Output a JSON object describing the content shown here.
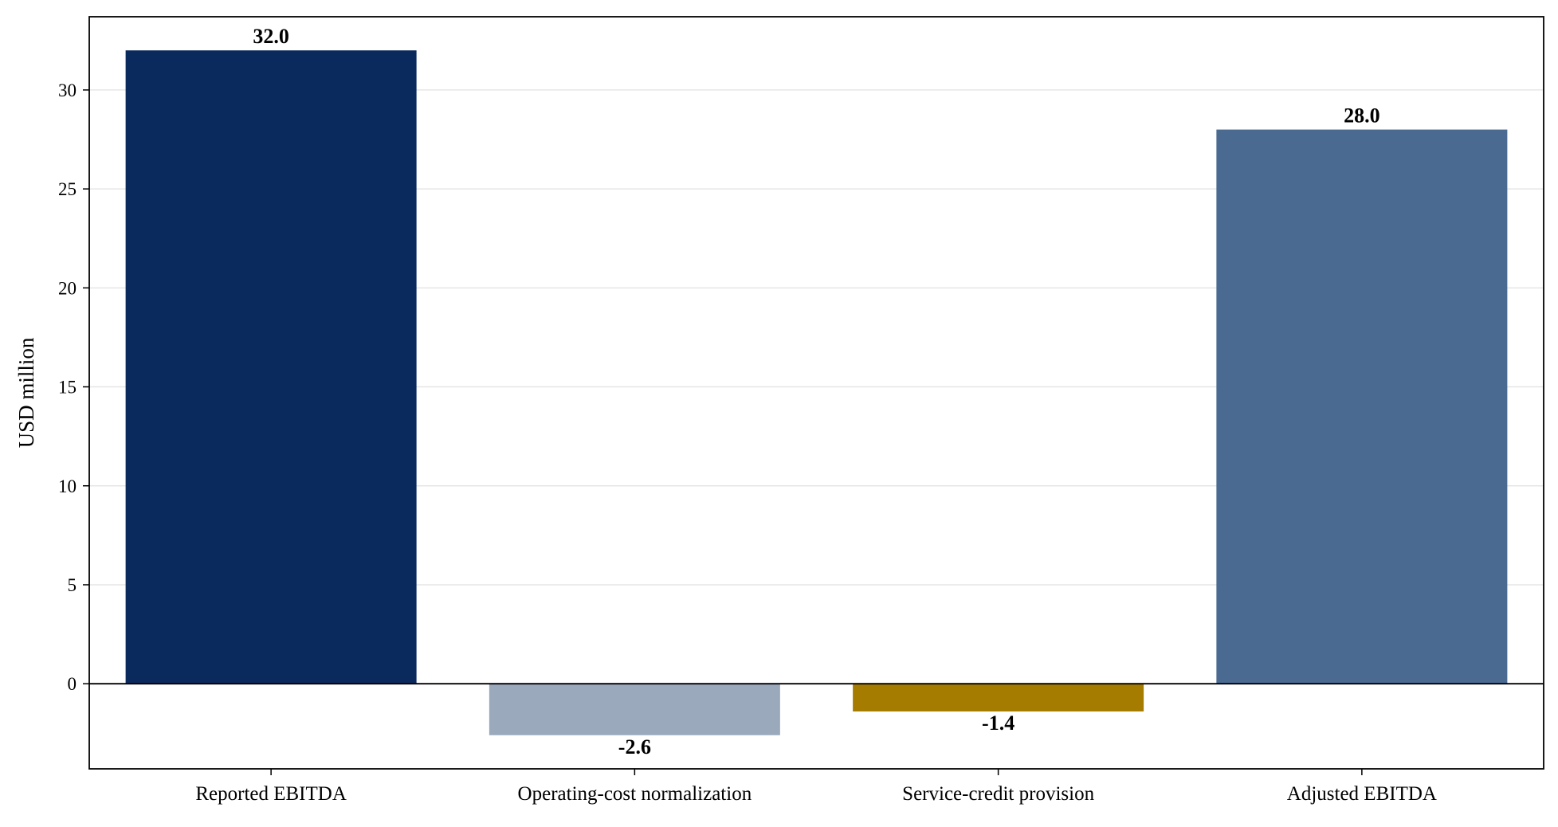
{
  "chart_data": {
    "type": "bar",
    "title": "",
    "xlabel": "",
    "ylabel": "USD million",
    "categories": [
      "Reported EBITDA",
      "Operating-cost normalization",
      "Service-credit provision",
      "Adjusted EBITDA"
    ],
    "values": [
      32.0,
      -2.6,
      -1.4,
      28.0
    ],
    "value_labels": [
      "32.0",
      "-2.6",
      "-1.4",
      "28.0"
    ],
    "bar_colors": [
      "#0a2a5e",
      "#9aa9bc",
      "#a57c00",
      "#4a6a92"
    ],
    "ylim": [
      -4.3,
      33.7
    ],
    "yticks": [
      0,
      5,
      10,
      15,
      20,
      25,
      30
    ],
    "ytick_labels": [
      "0",
      "5",
      "10",
      "15",
      "20",
      "25",
      "30"
    ],
    "grid": "horizontal",
    "zero_line": true,
    "legend": "none"
  }
}
